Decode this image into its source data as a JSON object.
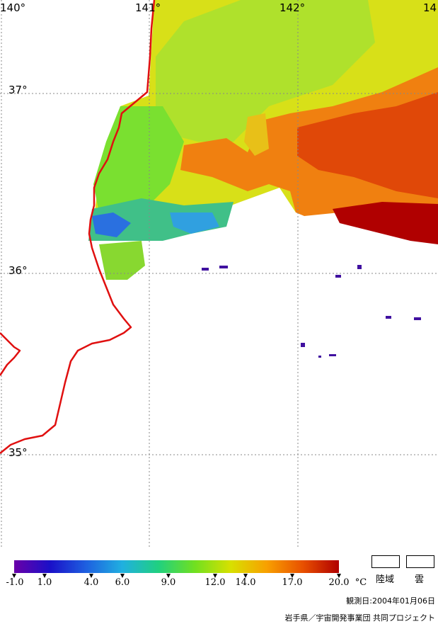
{
  "map": {
    "lon_labels": [
      "140°",
      "141°",
      "142°",
      "14"
    ],
    "lat_labels": [
      "37°",
      "36°",
      "35°"
    ]
  },
  "colorbar": {
    "ticks": [
      "-1.0",
      "1.0",
      "4.0",
      "6.0",
      "9.0",
      "12.0",
      "14.0",
      "17.0",
      "20.0"
    ],
    "unit": "°C",
    "colors": [
      "#6a00a8",
      "#1a10c8",
      "#1e60e0",
      "#20b0e0",
      "#20d080",
      "#70e020",
      "#d8e000",
      "#f8a000",
      "#e85000",
      "#b00000"
    ]
  },
  "legend": {
    "land_label": "陸域",
    "cloud_label": "雲"
  },
  "footer": {
    "observation_date": "観測日:2004年01月06日",
    "credit": "岩手県／宇宙開発事業団 共同プロジェクト"
  }
}
